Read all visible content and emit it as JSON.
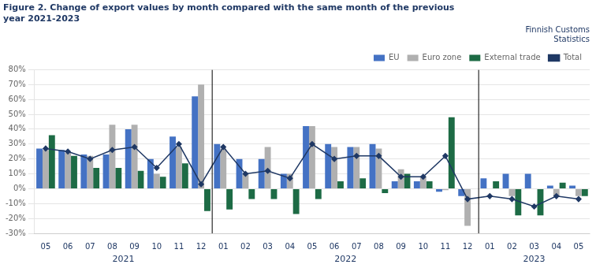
{
  "chart_data": {
    "type": "bar",
    "title": "Figure 2. Change of export values by month compared with the same month of the previous\nyear 2021-2023",
    "subtitle": "Finnish Customs\nStatistics",
    "categories": [
      "05",
      "06",
      "07",
      "08",
      "09",
      "10",
      "11",
      "12",
      "01",
      "02",
      "03",
      "04",
      "05",
      "06",
      "07",
      "08",
      "09",
      "10",
      "11",
      "12",
      "01",
      "02",
      "03",
      "04",
      "05"
    ],
    "series": [
      {
        "name": "EU",
        "color": "#4472C4",
        "values": [
          27,
          26,
          23,
          23,
          40,
          20,
          35,
          62,
          30,
          20,
          20,
          10,
          42,
          30,
          28,
          30,
          5,
          5,
          -2,
          -5,
          7,
          10,
          10,
          2,
          2
        ]
      },
      {
        "name": "Euro zone",
        "color": "#B0B0B0",
        "values": [
          26,
          24,
          22,
          43,
          43,
          10,
          28,
          70,
          27,
          10,
          28,
          10,
          42,
          28,
          28,
          27,
          13,
          8,
          -1,
          -25,
          0,
          -5,
          0,
          -5,
          -5
        ]
      },
      {
        "name": "External trade",
        "color": "#1D6B45",
        "values": [
          36,
          22,
          14,
          14,
          12,
          8,
          17,
          -15,
          -14,
          -7,
          -7,
          -17,
          -7,
          5,
          7,
          -3,
          10,
          5,
          48,
          0,
          5,
          -18,
          -18,
          4,
          -5
        ]
      },
      {
        "name": "Total",
        "type": "line",
        "color": "#1F3864",
        "marker": "diamond",
        "values": [
          27,
          25,
          20,
          26,
          28,
          14,
          30,
          3,
          28,
          10,
          12,
          7,
          30,
          20,
          22,
          22,
          8,
          8,
          22,
          -7,
          -5,
          -7,
          -12,
          -5,
          -7
        ]
      }
    ],
    "ylim": [
      -30,
      80
    ],
    "yticks": [
      {
        "value": -30,
        "label": "-30%"
      },
      {
        "value": -20,
        "label": "-20%"
      },
      {
        "value": -10,
        "label": "-10%"
      },
      {
        "value": 0,
        "label": "0%"
      },
      {
        "value": 10,
        "label": "10%"
      },
      {
        "value": 20,
        "label": "20%"
      },
      {
        "value": 30,
        "label": "30%"
      },
      {
        "value": 40,
        "label": "40%"
      },
      {
        "value": 50,
        "label": "50%"
      },
      {
        "value": 60,
        "label": "60%"
      },
      {
        "value": 70,
        "label": "70%"
      },
      {
        "value": 80,
        "label": "80%"
      }
    ],
    "grid": "y",
    "legend": "upper right",
    "annotations": [
      {
        "text": "2021",
        "x": 3.5
      },
      {
        "text": "2022",
        "x": 13.5
      },
      {
        "text": "2023",
        "x": 22.0
      }
    ],
    "vlines": [
      7.5,
      19.5
    ]
  }
}
